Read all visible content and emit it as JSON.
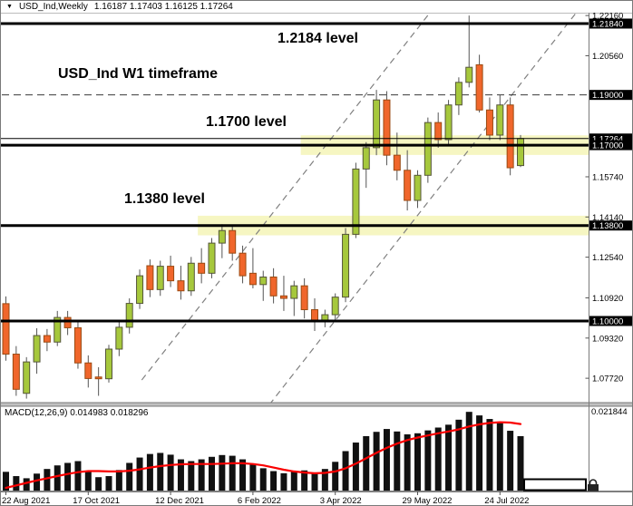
{
  "window": {
    "symbol": "USD_Ind,Weekly",
    "ohlc_line": "1.16187 1.17403 1.16125 1.17264",
    "collapse_icon": "▼"
  },
  "annotations": {
    "level_12184": "1.2184 level",
    "timeframe": "USD_Ind W1 timeframe",
    "level_11700": "1.1700 level",
    "level_11380": "1.1380 level"
  },
  "indicator": {
    "label_full": "MACD(12,26,9) 0.014983 0.018296",
    "max_level_label": "0.021844"
  },
  "colors": {
    "bull_fill": "#A6C83C",
    "bull_border": "#55553A",
    "bear_fill": "#F0662B",
    "bear_border": "#9A4A12",
    "wick": "#555555",
    "level_line": "#000000",
    "dashed_level": "#3a3a3a",
    "trendline": "#808080",
    "band_fill": "#F6F6C2",
    "histogram": "#111111",
    "signal_line": "#FA0000",
    "axis_text": "#000000",
    "axis_label_highlight_bg": "#000000",
    "axis_label_highlight_fg": "#ffffff",
    "frame": "#7a7a7a",
    "separator_fill": "#c0c0c0"
  },
  "chart_data": {
    "type": "candlestick",
    "title": "USD_Ind Weekly (W1)",
    "ylim": [
      1.07,
      1.223
    ],
    "grid": false,
    "x_tick_labels": [
      {
        "index": 0,
        "label": "22 Aug 2021"
      },
      {
        "index": 8,
        "label": "17 Oct 2021"
      },
      {
        "index": 16,
        "label": "12 Dec 2021"
      },
      {
        "index": 24,
        "label": "6 Feb 2022"
      },
      {
        "index": 32,
        "label": "3 Apr 2022"
      },
      {
        "index": 40,
        "label": "29 May 2022"
      },
      {
        "index": 48,
        "label": "24 Jul 2022"
      }
    ],
    "y_axis_labels": [
      {
        "text": "1.22160",
        "price": 1.2216,
        "highlighted": false
      },
      {
        "text": "1.21840",
        "price": 1.2184,
        "highlighted": true
      },
      {
        "text": "1.20560",
        "price": 1.2056,
        "highlighted": false
      },
      {
        "text": "1.19000",
        "price": 1.19,
        "highlighted": true
      },
      {
        "text": "1.17264",
        "price": 1.17264,
        "highlighted": true
      },
      {
        "text": "1.17000",
        "price": 1.17,
        "highlighted": true
      },
      {
        "text": "1.15740",
        "price": 1.1574,
        "highlighted": false
      },
      {
        "text": "1.14140",
        "price": 1.1414,
        "highlighted": false
      },
      {
        "text": "1.13800",
        "price": 1.138,
        "highlighted": true
      },
      {
        "text": "1.12540",
        "price": 1.1254,
        "highlighted": false
      },
      {
        "text": "1.10920",
        "price": 1.1092,
        "highlighted": false
      },
      {
        "text": "1.10000",
        "price": 1.1,
        "highlighted": true
      },
      {
        "text": "1.09320",
        "price": 1.0932,
        "highlighted": false
      },
      {
        "text": "1.07720",
        "price": 1.0772,
        "highlighted": false
      }
    ],
    "horizontal_levels": {
      "solid_thick": [
        1.2184,
        1.17,
        1.138,
        1.1
      ],
      "dashed": [
        1.19
      ],
      "current_price": 1.17264
    },
    "highlight_bands": [
      {
        "level": 1.17,
        "half_width": 0.0039,
        "start_index": 29
      },
      {
        "level": 1.138,
        "half_width": 0.0039,
        "start_index": 19
      }
    ],
    "trendlines": [
      {
        "from_index": 13.2,
        "from_price": 1.0765,
        "to_index": 41.4,
        "to_price": 1.2238
      },
      {
        "from_index": 25.6,
        "from_price": 1.0667,
        "to_index": 56.3,
        "to_price": 1.2274
      }
    ],
    "current_bar_ohlc": {
      "open": 1.16187,
      "high": 1.17403,
      "low": 1.16125,
      "close": 1.17264
    },
    "candle_columns": [
      "open",
      "high",
      "low",
      "close"
    ],
    "candles": [
      [
        1.1069,
        1.1098,
        1.0842,
        1.0868
      ],
      [
        1.0868,
        1.09,
        1.0702,
        1.0728
      ],
      [
        1.0712,
        1.0856,
        1.0691,
        1.0837
      ],
      [
        1.0837,
        1.0971,
        1.079,
        1.0942
      ],
      [
        1.0942,
        1.0968,
        1.088,
        1.0916
      ],
      [
        1.0916,
        1.104,
        1.09,
        1.1014
      ],
      [
        1.1014,
        1.104,
        1.0944,
        1.0973
      ],
      [
        1.0973,
        1.0995,
        1.081,
        1.0833
      ],
      [
        1.0833,
        1.0863,
        1.0735,
        1.0771
      ],
      [
        1.0777,
        1.0816,
        1.0702,
        1.077
      ],
      [
        1.077,
        1.0905,
        1.0755,
        1.0888
      ],
      [
        1.0888,
        1.0998,
        1.086,
        1.0975
      ],
      [
        1.0975,
        1.109,
        1.095,
        1.107
      ],
      [
        1.107,
        1.1205,
        1.1048,
        1.118
      ],
      [
        1.122,
        1.1245,
        1.1095,
        1.1125
      ],
      [
        1.1125,
        1.124,
        1.11,
        1.1218
      ],
      [
        1.1218,
        1.126,
        1.1135,
        1.116
      ],
      [
        1.116,
        1.122,
        1.1085,
        1.112
      ],
      [
        1.112,
        1.1255,
        1.11,
        1.123
      ],
      [
        1.123,
        1.129,
        1.115,
        1.119
      ],
      [
        1.119,
        1.133,
        1.117,
        1.131
      ],
      [
        1.131,
        1.1385,
        1.125,
        1.136
      ],
      [
        1.136,
        1.1382,
        1.124,
        1.127
      ],
      [
        1.127,
        1.13,
        1.115,
        1.118
      ],
      [
        1.119,
        1.129,
        1.113,
        1.1145
      ],
      [
        1.1145,
        1.12,
        1.108,
        1.1175
      ],
      [
        1.1175,
        1.121,
        1.107,
        1.11
      ],
      [
        1.11,
        1.118,
        1.104,
        1.109
      ],
      [
        1.109,
        1.116,
        1.102,
        1.114
      ],
      [
        1.114,
        1.117,
        1.101,
        1.1045
      ],
      [
        1.1045,
        1.109,
        1.096,
        1.1
      ],
      [
        1.1,
        1.1045,
        1.0975,
        1.1025
      ],
      [
        1.1025,
        1.111,
        1.0995,
        1.1095
      ],
      [
        1.1095,
        1.137,
        1.1075,
        1.1345
      ],
      [
        1.1345,
        1.163,
        1.133,
        1.1605
      ],
      [
        1.1605,
        1.1712,
        1.153,
        1.169
      ],
      [
        1.169,
        1.192,
        1.166,
        1.188
      ],
      [
        1.188,
        1.1915,
        1.162,
        1.166
      ],
      [
        1.166,
        1.175,
        1.156,
        1.16
      ],
      [
        1.16,
        1.168,
        1.144,
        1.148
      ],
      [
        1.148,
        1.16,
        1.145,
        1.158
      ],
      [
        1.158,
        1.181,
        1.155,
        1.179
      ],
      [
        1.179,
        1.183,
        1.169,
        1.1722
      ],
      [
        1.1722,
        1.188,
        1.17,
        1.186
      ],
      [
        1.186,
        1.197,
        1.182,
        1.195
      ],
      [
        1.195,
        1.2216,
        1.193,
        1.201
      ],
      [
        1.202,
        1.206,
        1.183,
        1.184
      ],
      [
        1.184,
        1.189,
        1.172,
        1.174
      ],
      [
        1.174,
        1.19,
        1.172,
        1.186
      ],
      [
        1.186,
        1.189,
        1.158,
        1.161
      ],
      [
        1.16187,
        1.17403,
        1.16125,
        1.17264
      ]
    ],
    "macd": {
      "name": "MACD(12,26,9)",
      "macd_value": 0.014983,
      "signal_value": 0.018296,
      "max_level": 0.021844,
      "histogram": [
        0.005,
        0.0038,
        0.0032,
        0.0045,
        0.0058,
        0.0068,
        0.0075,
        0.008,
        0.0052,
        0.0035,
        0.0038,
        0.0055,
        0.0075,
        0.009,
        0.01,
        0.0103,
        0.0098,
        0.0085,
        0.008,
        0.0085,
        0.0092,
        0.0097,
        0.0095,
        0.0085,
        0.0072,
        0.006,
        0.0052,
        0.0046,
        0.005,
        0.0054,
        0.0048,
        0.0058,
        0.0078,
        0.0108,
        0.0132,
        0.015,
        0.0162,
        0.017,
        0.0163,
        0.0155,
        0.0158,
        0.0166,
        0.0174,
        0.0182,
        0.0196,
        0.0218,
        0.0208,
        0.0198,
        0.019,
        0.0165,
        0.015
      ],
      "signal": [
        0.0005,
        0.0012,
        0.0019,
        0.0026,
        0.0032,
        0.0038,
        0.0044,
        0.0049,
        0.0052,
        0.0052,
        0.0051,
        0.0051,
        0.0053,
        0.0057,
        0.0062,
        0.0066,
        0.0069,
        0.0071,
        0.0072,
        0.0072,
        0.0072,
        0.0073,
        0.0074,
        0.0074,
        0.0072,
        0.0068,
        0.0062,
        0.0056,
        0.0051,
        0.0048,
        0.0046,
        0.0047,
        0.0051,
        0.006,
        0.0073,
        0.0088,
        0.0103,
        0.0117,
        0.0129,
        0.0139,
        0.0146,
        0.0152,
        0.0158,
        0.0163,
        0.0169,
        0.0177,
        0.0183,
        0.0187,
        0.0189,
        0.0188,
        0.0184
      ]
    }
  }
}
